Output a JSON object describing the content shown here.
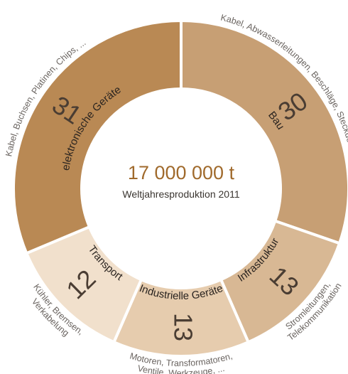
{
  "chart_data": {
    "type": "pie",
    "style": "donut",
    "center_value": "17 000 000 t",
    "center_label": "Weltjahresproduktion 2011",
    "slices": [
      {
        "name": "Bau",
        "value": 30,
        "description": "Kabel, Abwasserleitungen, Beschläge, Steckdosen, Schalter, ...",
        "color": "#c79f74"
      },
      {
        "name": "Infrastruktur",
        "value": 13,
        "description": "Stromleitungen, Telekommunikation",
        "color": "#d8b894"
      },
      {
        "name": "Industrielle Geräte",
        "value": 13,
        "description": "Motoren, Transformatoren, Ventile, Werkzeuge, ...",
        "color": "#e6ccae"
      },
      {
        "name": "Transport",
        "value": 12,
        "description": "Kühler, Bremsen, Verkabelung",
        "color": "#f1e0cc"
      },
      {
        "name": "elektronische Geräte",
        "value": 31,
        "description": "Kabel, Buchsen, Platinen, Chips, ...",
        "color": "#b98954"
      }
    ]
  }
}
